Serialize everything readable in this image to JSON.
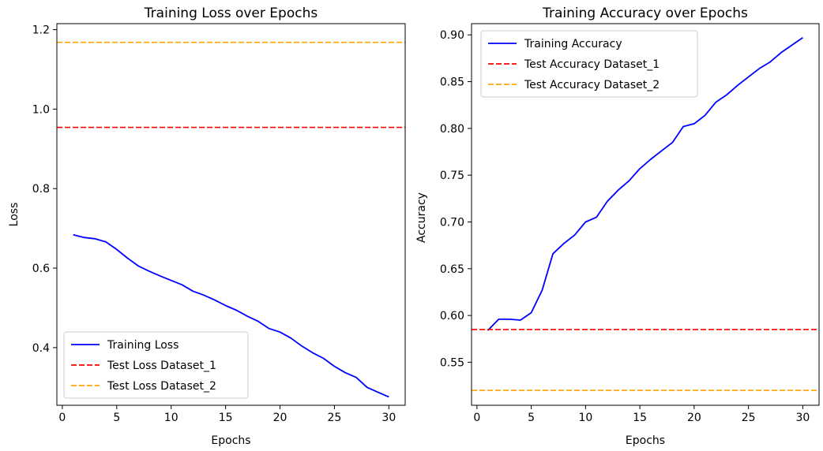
{
  "chart_data": [
    {
      "type": "line",
      "title": "Training Loss over Epochs",
      "xlabel": "Epochs",
      "ylabel": "Loss",
      "xlim": [
        -0.5,
        31.5
      ],
      "ylim": [
        0.255,
        1.215
      ],
      "xticks": [
        0,
        5,
        10,
        15,
        20,
        25,
        30
      ],
      "yticks": [
        0.4,
        0.6,
        0.8,
        1.0,
        1.2
      ],
      "ytick_decimals": 1,
      "grid": false,
      "legend_position": "lower-left",
      "series": [
        {
          "name": "Training Loss",
          "color": "#0000ff",
          "style": "solid",
          "x": [
            1,
            2,
            3,
            4,
            5,
            6,
            7,
            8,
            9,
            10,
            11,
            12,
            13,
            14,
            15,
            16,
            17,
            18,
            19,
            20,
            21,
            22,
            23,
            24,
            25,
            26,
            27,
            28,
            29,
            30
          ],
          "y": [
            0.684,
            0.677,
            0.674,
            0.666,
            0.647,
            0.625,
            0.605,
            0.592,
            0.58,
            0.569,
            0.558,
            0.542,
            0.532,
            0.52,
            0.506,
            0.494,
            0.479,
            0.466,
            0.448,
            0.439,
            0.424,
            0.404,
            0.387,
            0.373,
            0.353,
            0.337,
            0.325,
            0.3,
            0.288,
            0.276
          ]
        },
        {
          "name": "Test Loss Dataset_1",
          "color": "#ff0000",
          "style": "dashed",
          "hline": 0.954
        },
        {
          "name": "Test Loss Dataset_2",
          "color": "#ffa500",
          "style": "dashed",
          "hline": 1.168
        }
      ]
    },
    {
      "type": "line",
      "title": "Training Accuracy over Epochs",
      "xlabel": "Epochs",
      "ylabel": "Accuracy",
      "xlim": [
        -0.5,
        31.5
      ],
      "ylim": [
        0.504,
        0.912
      ],
      "xticks": [
        0,
        5,
        10,
        15,
        20,
        25,
        30
      ],
      "yticks": [
        0.55,
        0.6,
        0.65,
        0.7,
        0.75,
        0.8,
        0.85,
        0.9
      ],
      "ytick_decimals": 2,
      "grid": false,
      "legend_position": "upper-left",
      "series": [
        {
          "name": "Training Accuracy",
          "color": "#0000ff",
          "style": "solid",
          "x": [
            1,
            2,
            3,
            4,
            5,
            6,
            7,
            8,
            9,
            10,
            11,
            12,
            13,
            14,
            15,
            16,
            17,
            18,
            19,
            20,
            21,
            22,
            23,
            24,
            25,
            26,
            27,
            28,
            29,
            30
          ],
          "y": [
            0.584,
            0.596,
            0.596,
            0.595,
            0.603,
            0.627,
            0.666,
            0.677,
            0.686,
            0.7,
            0.705,
            0.722,
            0.734,
            0.744,
            0.757,
            0.767,
            0.776,
            0.785,
            0.802,
            0.805,
            0.814,
            0.828,
            0.836,
            0.846,
            0.855,
            0.864,
            0.871,
            0.881,
            0.889,
            0.897
          ]
        },
        {
          "name": "Test Accuracy Dataset_1",
          "color": "#ff0000",
          "style": "dashed",
          "hline": 0.585
        },
        {
          "name": "Test Accuracy Dataset_2",
          "color": "#ffa500",
          "style": "dashed",
          "hline": 0.52
        }
      ]
    }
  ]
}
